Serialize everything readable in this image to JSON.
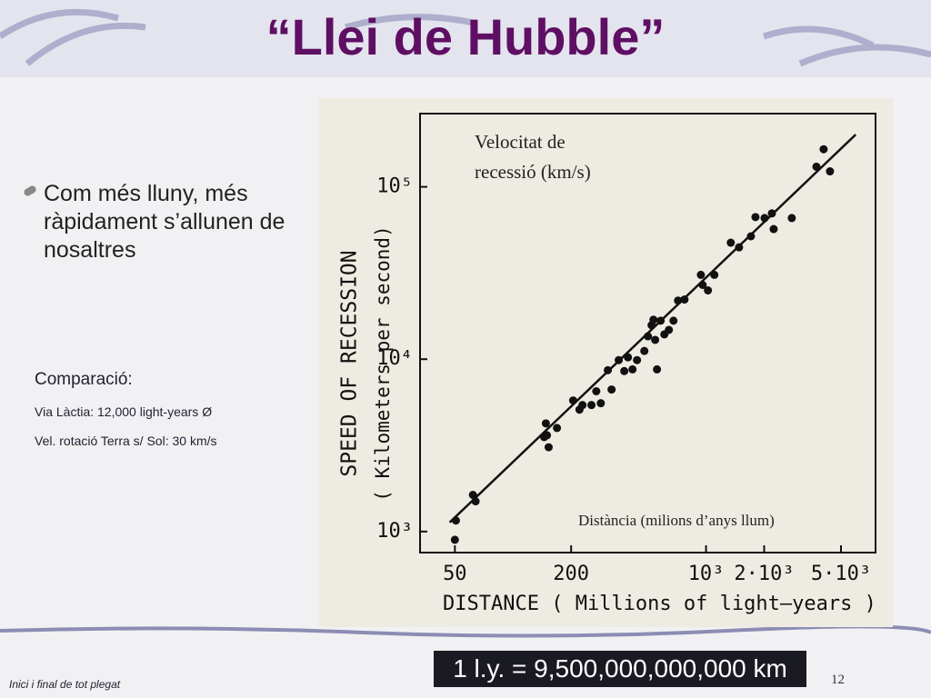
{
  "title": "“Llei de Hubble”",
  "bullet": "Com més lluny, més ràpidament s’allunen de nosaltres",
  "comparison": {
    "heading": "Comparació:",
    "items": [
      "Via Làctia: 12,000 light-years Ø",
      "Vel. rotació Terra s/ Sol: 30 km/s"
    ]
  },
  "conversion": "1 l.y. = 9,500,000,000,000 km",
  "footer": "Inici i final de tot plegat",
  "page_number": "12",
  "chart_data": {
    "type": "scatter",
    "x_label": "DISTANCE ( Millions of light–years )",
    "y_label": "SPEED OF RECESSION",
    "y_label_sub": "( Kilometers per second)",
    "annotations": [
      "Velocitat de",
      "recessió (km/s)",
      "Distància (milions d’anys llum)"
    ],
    "log_x": true,
    "log_y": true,
    "xlim": [
      33,
      7550
    ],
    "ylim": [
      755,
      266000
    ],
    "xticks": [
      50,
      200,
      {
        "value": 1000,
        "label": "10³"
      },
      {
        "value": 2000,
        "label": "2·10³"
      },
      {
        "value": 5000,
        "label": "5·10³"
      }
    ],
    "yticks": [
      {
        "value": 1000,
        "label": "10³"
      },
      {
        "value": 10000,
        "label": "10⁴"
      },
      {
        "value": 100000,
        "label": "10⁵"
      }
    ],
    "color": "#111111",
    "fit_line": {
      "x": [
        47,
        5960
      ],
      "y": [
        1130,
        201000
      ]
    },
    "x": [
      50.6,
      50,
      62,
      64,
      148,
      150,
      153,
      145,
      169,
      205,
      229,
      221,
      255,
      270,
      285,
      310,
      324,
      353,
      377,
      394,
      416,
      439,
      479,
      500,
      522,
      534,
      545,
      557,
      582,
      608,
      642,
      678,
      716,
      773,
      940,
      960,
      1023,
      1104,
      1343,
      1482,
      1708,
      1803,
      2010,
      2193,
      2240,
      2780,
      3730,
      4065,
      4385
    ],
    "y": [
      1159,
      896,
      1632,
      1498,
      4243,
      3620,
      3085,
      3530,
      3990,
      5765,
      5420,
      5096,
      5420,
      6515,
      5555,
      8630,
      6670,
      9880,
      8530,
      10250,
      8730,
      9880,
      11160,
      13580,
      15740,
      16940,
      12940,
      8730,
      16720,
      13930,
      14790,
      16720,
      21880,
      22180,
      30850,
      26970,
      25060,
      30850,
      47400,
      44560,
      51640,
      66750,
      65920,
      70150,
      56900,
      65920,
      130900,
      165200,
      123000
    ]
  }
}
